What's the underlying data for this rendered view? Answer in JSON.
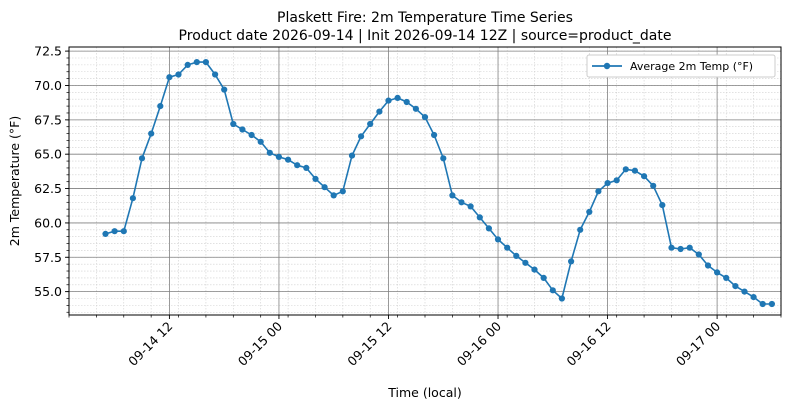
{
  "chart_data": {
    "type": "line",
    "title": "Plaskett Fire: 2m Temperature Time Series",
    "subtitle": "Product date 2026-09-14 | Init 2026-09-14 12Z | source=product_date",
    "xlabel": "Time (local)",
    "ylabel": "2m Temperature (°F)",
    "x_ticks": [
      "09-14 12",
      "09-15 00",
      "09-15 12",
      "09-16 00",
      "09-16 12",
      "09-17 00"
    ],
    "y_ticks": [
      "55.0",
      "57.5",
      "60.0",
      "62.5",
      "65.0",
      "67.5",
      "70.0",
      "72.5"
    ],
    "xlim": [
      "2026-09-14 01:00",
      "2026-09-17 07:00"
    ],
    "ylim": [
      53.3,
      72.8
    ],
    "grid": true,
    "legend_position": "top-right",
    "colors": {
      "series": "#1f77b4",
      "major_grid": "#808080",
      "minor_grid": "#d0d0d0"
    },
    "series": [
      {
        "name": "Average 2m Temp (°F)",
        "x": [
          "2026-09-14 05:00",
          "2026-09-14 06:00",
          "2026-09-14 07:00",
          "2026-09-14 08:00",
          "2026-09-14 09:00",
          "2026-09-14 10:00",
          "2026-09-14 11:00",
          "2026-09-14 12:00",
          "2026-09-14 13:00",
          "2026-09-14 14:00",
          "2026-09-14 15:00",
          "2026-09-14 16:00",
          "2026-09-14 17:00",
          "2026-09-14 18:00",
          "2026-09-14 19:00",
          "2026-09-14 20:00",
          "2026-09-14 21:00",
          "2026-09-14 22:00",
          "2026-09-14 23:00",
          "2026-09-15 00:00",
          "2026-09-15 01:00",
          "2026-09-15 02:00",
          "2026-09-15 03:00",
          "2026-09-15 04:00",
          "2026-09-15 05:00",
          "2026-09-15 06:00",
          "2026-09-15 07:00",
          "2026-09-15 08:00",
          "2026-09-15 09:00",
          "2026-09-15 10:00",
          "2026-09-15 11:00",
          "2026-09-15 12:00",
          "2026-09-15 13:00",
          "2026-09-15 14:00",
          "2026-09-15 15:00",
          "2026-09-15 16:00",
          "2026-09-15 17:00",
          "2026-09-15 18:00",
          "2026-09-15 19:00",
          "2026-09-15 20:00",
          "2026-09-15 21:00",
          "2026-09-15 22:00",
          "2026-09-15 23:00",
          "2026-09-16 00:00",
          "2026-09-16 01:00",
          "2026-09-16 02:00",
          "2026-09-16 03:00",
          "2026-09-16 04:00",
          "2026-09-16 05:00",
          "2026-09-16 06:00",
          "2026-09-16 07:00",
          "2026-09-16 08:00",
          "2026-09-16 09:00",
          "2026-09-16 10:00",
          "2026-09-16 11:00",
          "2026-09-16 12:00",
          "2026-09-16 13:00",
          "2026-09-16 14:00",
          "2026-09-16 15:00",
          "2026-09-16 16:00",
          "2026-09-16 17:00",
          "2026-09-16 18:00",
          "2026-09-16 19:00",
          "2026-09-16 20:00",
          "2026-09-16 21:00",
          "2026-09-16 22:00",
          "2026-09-16 23:00",
          "2026-09-17 00:00",
          "2026-09-17 01:00",
          "2026-09-17 02:00",
          "2026-09-17 03:00",
          "2026-09-17 04:00",
          "2026-09-17 05:00",
          "2026-09-17 06:00"
        ],
        "values": [
          59.2,
          59.4,
          59.4,
          61.8,
          64.7,
          66.5,
          68.5,
          70.6,
          70.8,
          71.5,
          71.7,
          71.7,
          70.8,
          69.7,
          67.2,
          66.8,
          66.4,
          65.9,
          65.1,
          64.8,
          64.6,
          64.2,
          64.0,
          63.2,
          62.6,
          62.0,
          62.3,
          64.9,
          66.3,
          67.2,
          68.1,
          68.9,
          69.1,
          68.8,
          68.3,
          67.7,
          66.4,
          64.7,
          62.0,
          61.5,
          61.2,
          60.4,
          59.6,
          58.8,
          58.2,
          57.6,
          57.1,
          56.6,
          56.0,
          55.1,
          54.5,
          57.2,
          59.5,
          60.8,
          62.3,
          62.9,
          63.1,
          63.9,
          63.8,
          63.4,
          62.7,
          61.3,
          58.2,
          58.1,
          58.2,
          57.7,
          56.9,
          56.4,
          56.0,
          55.4,
          55.0,
          54.6,
          54.1,
          54.1
        ]
      }
    ]
  }
}
